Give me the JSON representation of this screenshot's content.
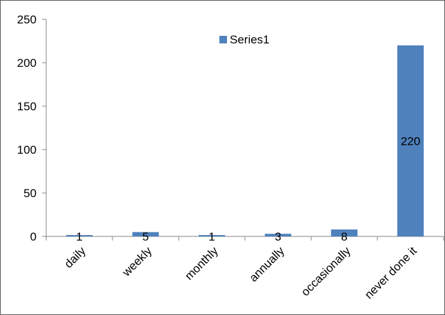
{
  "chart_data": {
    "type": "bar",
    "categories": [
      "daily",
      "weekly",
      "monthly",
      "annually",
      "occasionally",
      "never done it"
    ],
    "series": [
      {
        "name": "Series1",
        "values": [
          1,
          5,
          1,
          3,
          8,
          220
        ],
        "color": "#4F81BD"
      }
    ],
    "data_labels": [
      "1",
      "5",
      "1",
      "3",
      "8",
      "220"
    ],
    "ylim": [
      0,
      250
    ],
    "yticks": [
      0,
      50,
      100,
      150,
      200,
      250
    ],
    "grid": false,
    "legend": {
      "position": "top-center",
      "label": "Series1"
    },
    "xlabel": "",
    "ylabel": "",
    "title": ""
  }
}
